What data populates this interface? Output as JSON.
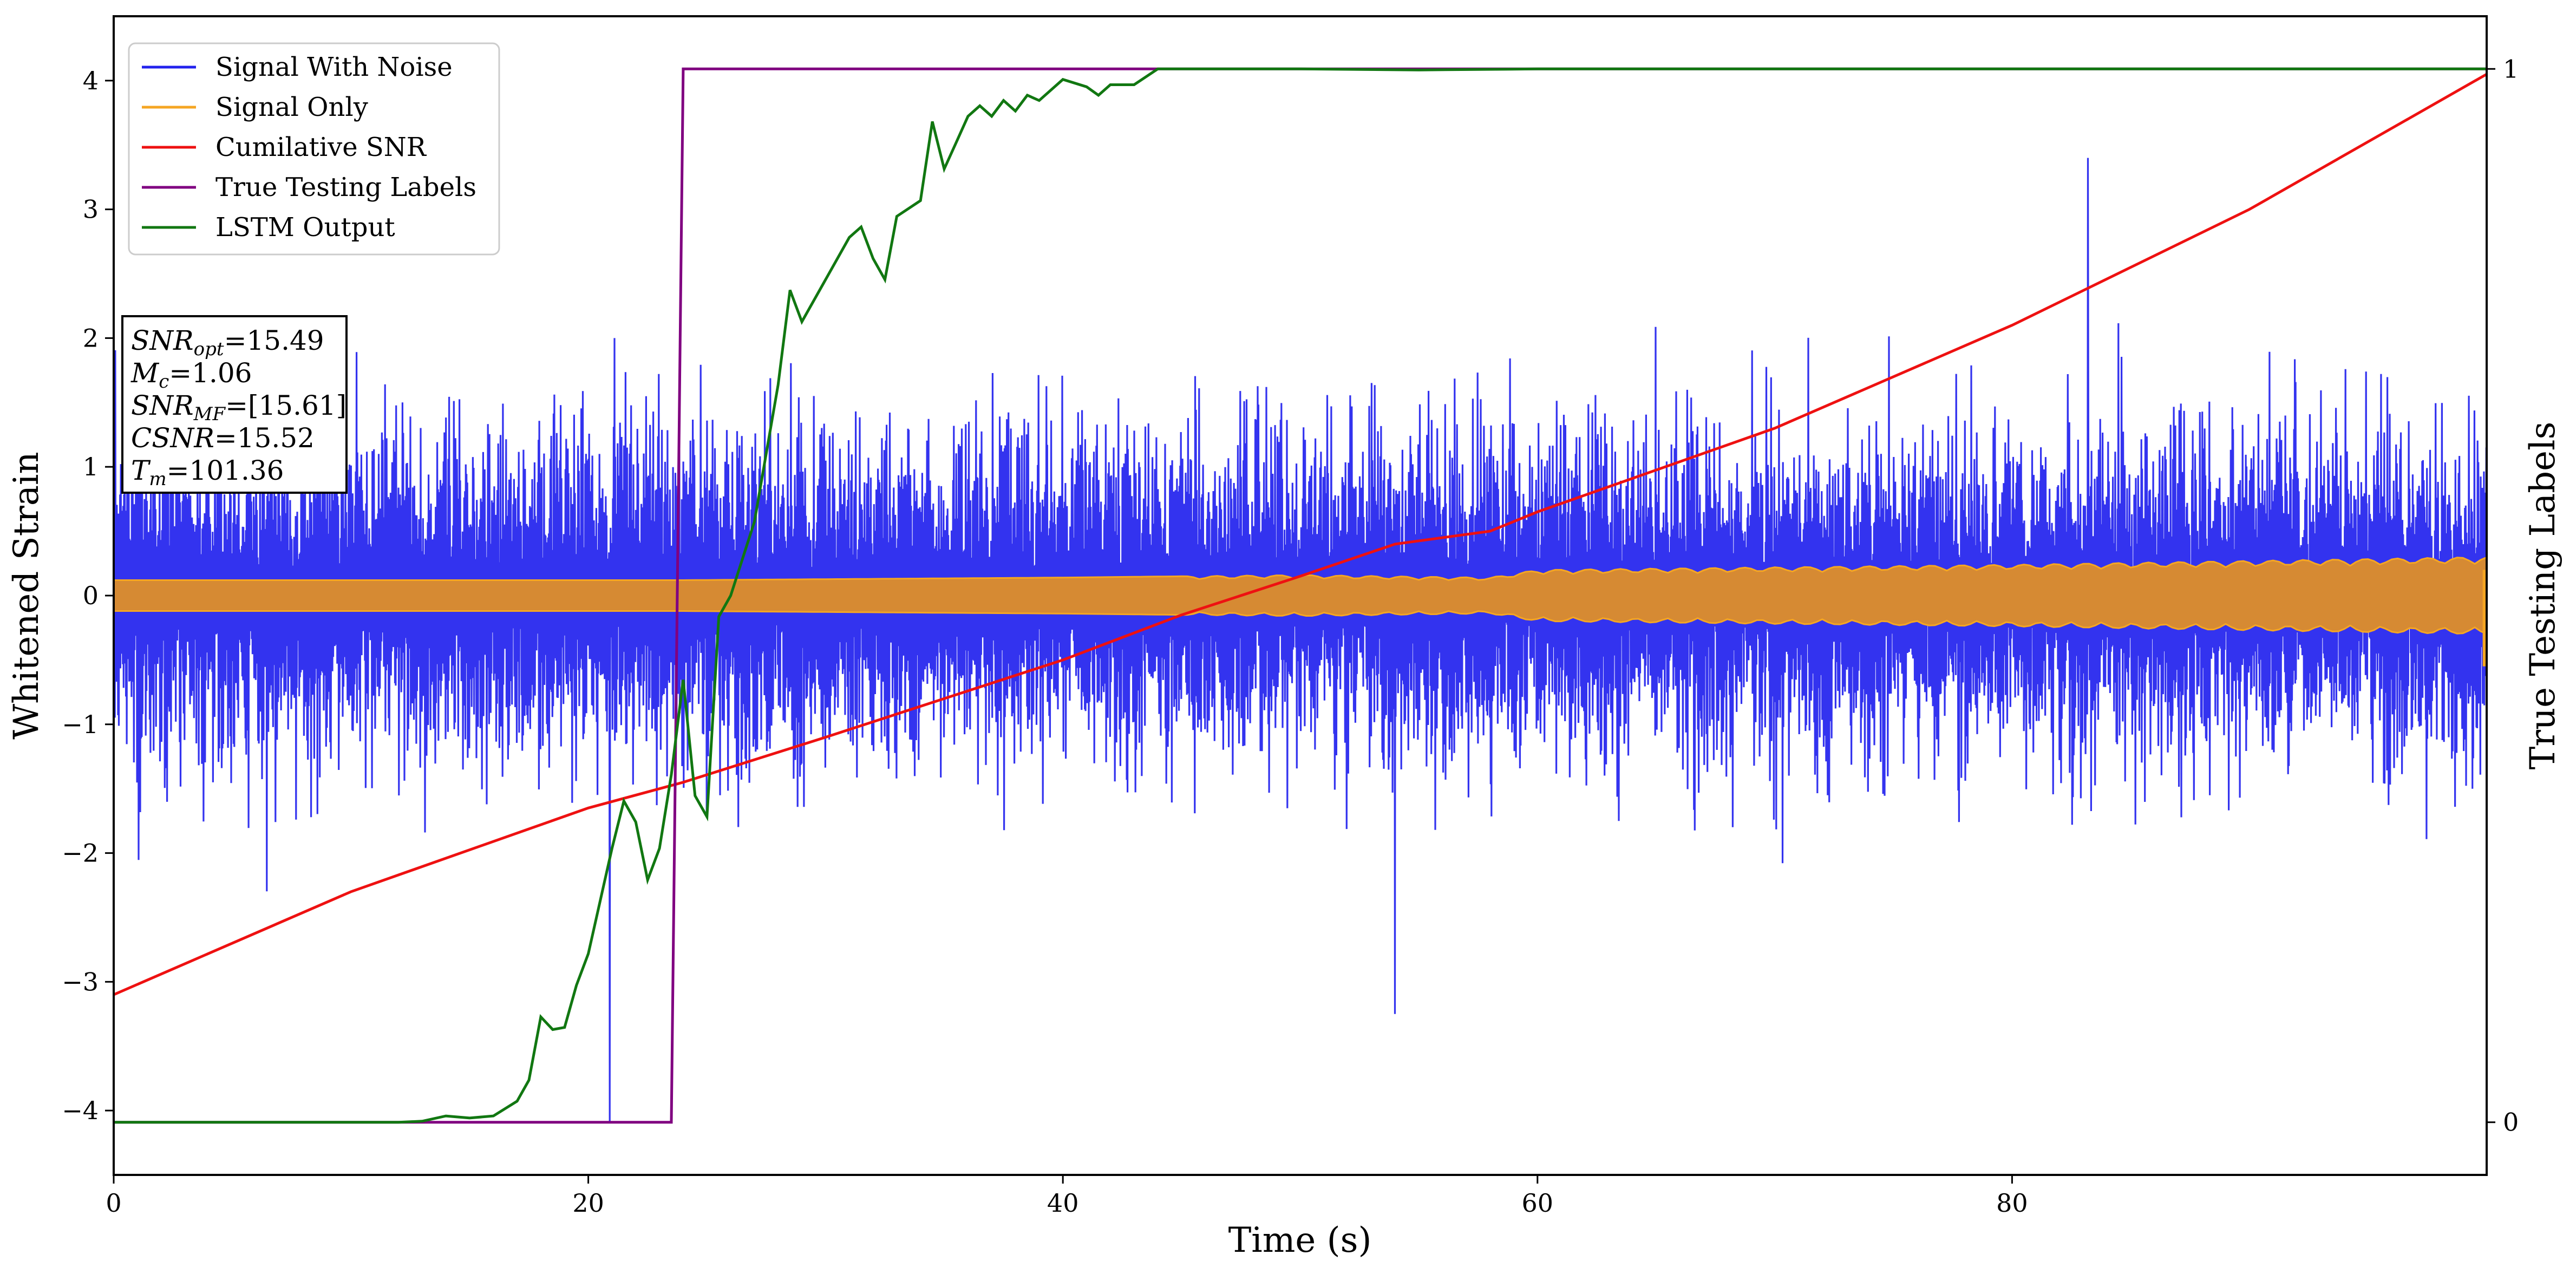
{
  "chart_data": {
    "type": "line",
    "xlabel": "Time (s)",
    "ylabel": "Whitened Strain",
    "y2label": "True Testing Labels",
    "xlim": [
      0,
      100
    ],
    "ylim": [
      -4.5,
      4.5
    ],
    "y2lim": [
      -0.05,
      1.05
    ],
    "xticks": [
      0,
      20,
      40,
      60,
      80
    ],
    "yticks": [
      -4,
      -3,
      -2,
      -1,
      0,
      1,
      2,
      3,
      4
    ],
    "y2ticks": [
      0,
      1
    ],
    "grid": false,
    "legend_position": "top-left",
    "series": [
      {
        "name": "Signal With Noise",
        "axis": "left",
        "color": "#2222ee",
        "description_points": {
          "x": [
            0,
            20.9,
            21.0,
            21.1,
            54,
            83.2,
            100
          ],
          "y": [
            0.5,
            -4.1,
            0.0,
            2.0,
            -3.25,
            3.4,
            0.5
          ]
        },
        "amplitude": 1.3
      },
      {
        "name": "Signal Only",
        "axis": "left",
        "color": "#f5a623",
        "envelope": {
          "x": [
            0,
            20,
            24,
            40,
            50,
            54,
            58,
            60,
            70,
            80,
            90,
            100
          ],
          "y": [
            0.12,
            0.12,
            0.12,
            0.14,
            0.16,
            0.15,
            0.14,
            0.2,
            0.22,
            0.24,
            0.27,
            0.3
          ]
        }
      },
      {
        "name": "Cumilative SNR",
        "axis": "left",
        "color": "#ee1111",
        "x": [
          0,
          10,
          20,
          24,
          30,
          40,
          45,
          50,
          54,
          58,
          60,
          70,
          80,
          90,
          100
        ],
        "y": [
          -3.1,
          -2.3,
          -1.65,
          -1.45,
          -1.1,
          -0.5,
          -0.15,
          0.15,
          0.4,
          0.5,
          0.65,
          1.3,
          2.1,
          3.0,
          4.05
        ]
      },
      {
        "name": "True Testing Labels",
        "axis": "right",
        "color": "#800080",
        "x": [
          0,
          23.5,
          24.0,
          100
        ],
        "y": [
          0,
          0,
          1,
          1
        ]
      },
      {
        "name": "LSTM Output",
        "axis": "right",
        "color": "#117711",
        "x": [
          0,
          12,
          13,
          14,
          15,
          16,
          17,
          17.5,
          18,
          18.5,
          19,
          19.5,
          20,
          21,
          21.5,
          22,
          22.5,
          23,
          23.5,
          24,
          24.5,
          25,
          25.5,
          26,
          27,
          28,
          28.5,
          29,
          30,
          31,
          31.5,
          32,
          32.5,
          33,
          34,
          34.5,
          35,
          35.5,
          36,
          36.5,
          37,
          37.5,
          38,
          38.5,
          39,
          40,
          41,
          41.5,
          42,
          43,
          44,
          45,
          50,
          55,
          60,
          65,
          70,
          75,
          80,
          90,
          100
        ],
        "y": [
          0,
          0,
          0.001,
          0.006,
          0.004,
          0.006,
          0.02,
          0.04,
          0.1,
          0.088,
          0.09,
          0.13,
          0.16,
          0.26,
          0.305,
          0.285,
          0.23,
          0.26,
          0.33,
          0.42,
          0.31,
          0.29,
          0.48,
          0.5,
          0.57,
          0.7,
          0.79,
          0.76,
          0.8,
          0.84,
          0.85,
          0.82,
          0.8,
          0.86,
          0.875,
          0.95,
          0.905,
          0.93,
          0.955,
          0.965,
          0.955,
          0.97,
          0.96,
          0.975,
          0.97,
          0.99,
          0.983,
          0.975,
          0.985,
          0.985,
          1.0,
          1.0,
          1.0,
          0.999,
          1.0,
          1.0,
          1.0,
          1.0,
          1.0,
          1.0,
          1.0
        ]
      }
    ]
  },
  "info_box": {
    "rows": [
      {
        "label": "SNR",
        "sub": "opt",
        "value": "=15.49"
      },
      {
        "label": "M",
        "sub": "c",
        "value": "=1.06"
      },
      {
        "label": "SNR",
        "sub": "MF",
        "value": "=[15.61]"
      },
      {
        "label": "CSNR",
        "sub": "",
        "value": "=15.52"
      },
      {
        "label": "T",
        "sub": "m",
        "value": "=101.36"
      }
    ]
  }
}
